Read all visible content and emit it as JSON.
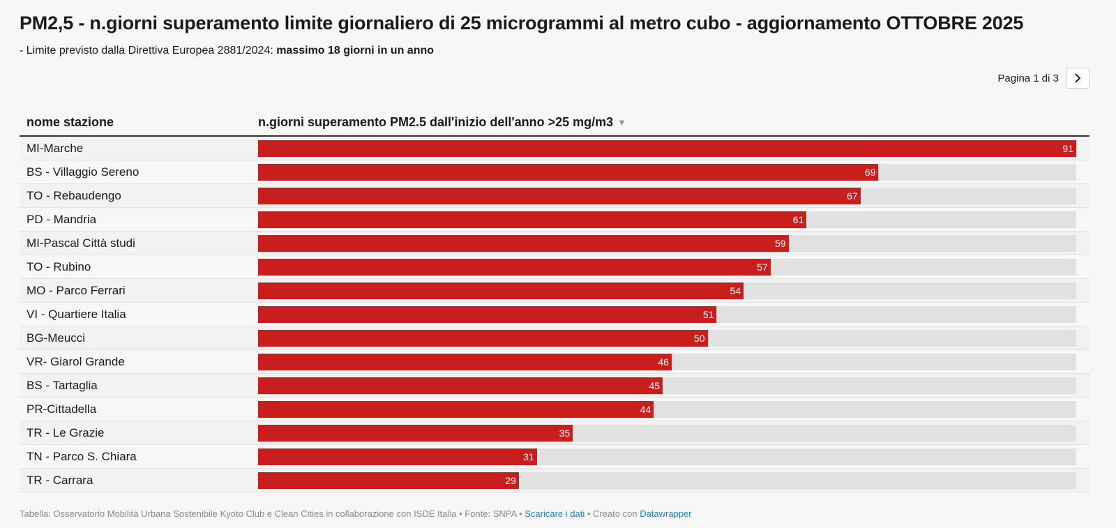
{
  "header": {
    "title": "PM2,5 - n.giorni superamento limite giornaliero di 25 microgrammi al metro cubo - aggiornamento OTTOBRE 2025",
    "subtitle_prefix": "- Limite previsto dalla Direttiva Europea 2881/2024: ",
    "subtitle_bold": "massimo 18 giorni in un anno"
  },
  "pager": {
    "label": "Pagina 1 di 3",
    "next_icon": "chevron-right-icon"
  },
  "table": {
    "col_name": "nome stazione",
    "col_value": "n.giorni superamento PM2.5 dall'inizio dell'anno >25 mg/m3",
    "sort_icon": "▼"
  },
  "colors": {
    "bar": "#c91e1e",
    "track": "#e1e1e1"
  },
  "chart_data": {
    "type": "bar",
    "orientation": "horizontal",
    "title": "PM2,5 - n.giorni superamento limite giornaliero di 25 microgrammi al metro cubo - aggiornamento OTTOBRE 2025",
    "max": 91,
    "categories": [
      "MI-Marche",
      "BS - Villaggio Sereno",
      "TO - Rebaudengo",
      "PD - Mandria",
      "MI-Pascal Città studi",
      "TO - Rubino",
      "MO - Parco Ferrari",
      "VI - Quartiere Italia",
      "BG-Meucci",
      "VR- Giarol Grande",
      "BS - Tartaglia",
      "PR-Cittadella",
      "TR - Le Grazie",
      "TN - Parco S. Chiara",
      "TR - Carrara"
    ],
    "values": [
      91,
      69,
      67,
      61,
      59,
      57,
      54,
      51,
      50,
      46,
      45,
      44,
      35,
      31,
      29
    ]
  },
  "footer": {
    "text": "Tabella: Osservatorio Mobilità Urbana Sostenibile Kyoto Club e Clean Cities in collaborazione con ISDE Italia • Fonte: SNPA • ",
    "download_link": "Scaricare i dati",
    "sep": " • Creato con ",
    "datawrapper_link": "Datawrapper"
  }
}
